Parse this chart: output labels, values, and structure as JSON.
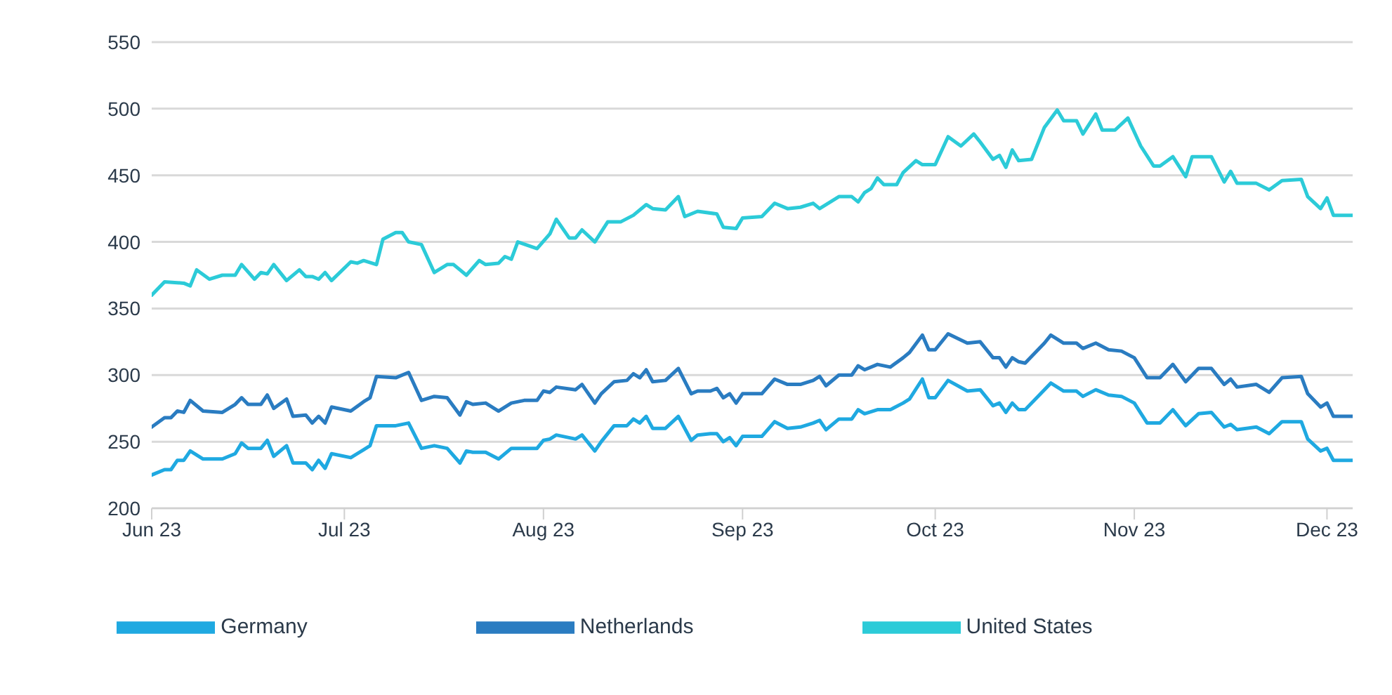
{
  "chart_data": {
    "type": "line",
    "ylim": [
      200,
      550
    ],
    "yticks": [
      200,
      250,
      300,
      350,
      400,
      450,
      500,
      550
    ],
    "xlim": [
      "2023-06-01",
      "2023-12-05"
    ],
    "xticks": [
      {
        "value": "2023-06-01",
        "label": "Jun 23"
      },
      {
        "value": "2023-07-01",
        "label": "Jul 23"
      },
      {
        "value": "2023-08-01",
        "label": "Aug 23"
      },
      {
        "value": "2023-09-01",
        "label": "Sep 23"
      },
      {
        "value": "2023-10-01",
        "label": "Oct 23"
      },
      {
        "value": "2023-11-01",
        "label": "Nov 23"
      },
      {
        "value": "2023-12-01",
        "label": "Dec 23"
      }
    ],
    "grid": "y",
    "legend": "bottom",
    "marker": "none",
    "line_style": "solid",
    "series": [
      {
        "name": "Germany",
        "color": "#1fa9e1",
        "x": [
          "2023-06-01",
          "2023-06-03",
          "2023-06-04",
          "2023-06-05",
          "2023-06-06",
          "2023-06-07",
          "2023-06-09",
          "2023-06-12",
          "2023-06-14",
          "2023-06-15",
          "2023-06-16",
          "2023-06-18",
          "2023-06-19",
          "2023-06-20",
          "2023-06-22",
          "2023-06-23",
          "2023-06-25",
          "2023-06-26",
          "2023-06-27",
          "2023-06-28",
          "2023-06-29",
          "2023-07-02",
          "2023-07-04",
          "2023-07-05",
          "2023-07-06",
          "2023-07-09",
          "2023-07-11",
          "2023-07-13",
          "2023-07-15",
          "2023-07-17",
          "2023-07-19",
          "2023-07-20",
          "2023-07-21",
          "2023-07-23",
          "2023-07-25",
          "2023-07-27",
          "2023-07-29",
          "2023-07-31",
          "2023-08-01",
          "2023-08-02",
          "2023-08-03",
          "2023-08-06",
          "2023-08-07",
          "2023-08-09",
          "2023-08-10",
          "2023-08-12",
          "2023-08-14",
          "2023-08-15",
          "2023-08-16",
          "2023-08-17",
          "2023-08-18",
          "2023-08-20",
          "2023-08-22",
          "2023-08-24",
          "2023-08-25",
          "2023-08-27",
          "2023-08-28",
          "2023-08-29",
          "2023-08-30",
          "2023-08-31",
          "2023-09-01",
          "2023-09-04",
          "2023-09-06",
          "2023-09-08",
          "2023-09-10",
          "2023-09-12",
          "2023-09-13",
          "2023-09-14",
          "2023-09-16",
          "2023-09-18",
          "2023-09-19",
          "2023-09-20",
          "2023-09-22",
          "2023-09-24",
          "2023-09-26",
          "2023-09-27",
          "2023-09-29",
          "2023-09-30",
          "2023-10-01",
          "2023-10-03",
          "2023-10-06",
          "2023-10-08",
          "2023-10-10",
          "2023-10-11",
          "2023-10-12",
          "2023-10-13",
          "2023-10-14",
          "2023-10-15",
          "2023-10-18",
          "2023-10-19",
          "2023-10-21",
          "2023-10-23",
          "2023-10-24",
          "2023-10-26",
          "2023-10-28",
          "2023-10-30",
          "2023-11-01",
          "2023-11-03",
          "2023-11-05",
          "2023-11-07",
          "2023-11-09",
          "2023-11-11",
          "2023-11-13",
          "2023-11-15",
          "2023-11-16",
          "2023-11-17",
          "2023-11-20",
          "2023-11-22",
          "2023-11-24",
          "2023-11-27",
          "2023-11-28",
          "2023-11-30",
          "2023-12-01",
          "2023-12-02",
          "2023-12-05"
        ],
        "values": [
          225,
          229,
          229,
          236,
          236,
          243,
          237,
          237,
          241,
          249,
          245,
          245,
          251,
          239,
          247,
          234,
          234,
          229,
          236,
          230,
          241,
          238,
          244,
          247,
          262,
          262,
          264,
          245,
          247,
          245,
          234,
          243,
          242,
          242,
          237,
          245,
          245,
          245,
          251,
          252,
          255,
          252,
          255,
          243,
          250,
          262,
          262,
          267,
          264,
          269,
          260,
          260,
          269,
          251,
          255,
          256,
          256,
          250,
          253,
          247,
          254,
          254,
          265,
          260,
          261,
          264,
          266,
          259,
          267,
          267,
          274,
          271,
          274,
          274,
          279,
          282,
          297,
          283,
          283,
          296,
          288,
          289,
          277,
          279,
          272,
          279,
          274,
          274,
          289,
          294,
          288,
          288,
          284,
          289,
          285,
          284,
          279,
          264,
          264,
          274,
          262,
          271,
          272,
          261,
          263,
          259,
          261,
          256,
          265,
          265,
          252,
          243,
          245,
          236,
          236
        ]
      },
      {
        "name": "Netherlands",
        "color": "#2a7cc1",
        "x": [
          "2023-06-01",
          "2023-06-03",
          "2023-06-04",
          "2023-06-05",
          "2023-06-06",
          "2023-06-07",
          "2023-06-09",
          "2023-06-12",
          "2023-06-14",
          "2023-06-15",
          "2023-06-16",
          "2023-06-18",
          "2023-06-19",
          "2023-06-20",
          "2023-06-22",
          "2023-06-23",
          "2023-06-25",
          "2023-06-26",
          "2023-06-27",
          "2023-06-28",
          "2023-06-29",
          "2023-07-02",
          "2023-07-04",
          "2023-07-05",
          "2023-07-06",
          "2023-07-09",
          "2023-07-11",
          "2023-07-13",
          "2023-07-15",
          "2023-07-17",
          "2023-07-19",
          "2023-07-20",
          "2023-07-21",
          "2023-07-23",
          "2023-07-25",
          "2023-07-27",
          "2023-07-29",
          "2023-07-31",
          "2023-08-01",
          "2023-08-02",
          "2023-08-03",
          "2023-08-06",
          "2023-08-07",
          "2023-08-09",
          "2023-08-10",
          "2023-08-12",
          "2023-08-14",
          "2023-08-15",
          "2023-08-16",
          "2023-08-17",
          "2023-08-18",
          "2023-08-20",
          "2023-08-22",
          "2023-08-24",
          "2023-08-25",
          "2023-08-27",
          "2023-08-28",
          "2023-08-29",
          "2023-08-30",
          "2023-08-31",
          "2023-09-01",
          "2023-09-04",
          "2023-09-06",
          "2023-09-08",
          "2023-09-10",
          "2023-09-12",
          "2023-09-13",
          "2023-09-14",
          "2023-09-16",
          "2023-09-18",
          "2023-09-19",
          "2023-09-20",
          "2023-09-22",
          "2023-09-24",
          "2023-09-26",
          "2023-09-27",
          "2023-09-29",
          "2023-09-30",
          "2023-10-01",
          "2023-10-03",
          "2023-10-06",
          "2023-10-08",
          "2023-10-10",
          "2023-10-11",
          "2023-10-12",
          "2023-10-13",
          "2023-10-14",
          "2023-10-15",
          "2023-10-18",
          "2023-10-19",
          "2023-10-21",
          "2023-10-23",
          "2023-10-24",
          "2023-10-26",
          "2023-10-28",
          "2023-10-30",
          "2023-11-01",
          "2023-11-03",
          "2023-11-05",
          "2023-11-07",
          "2023-11-09",
          "2023-11-11",
          "2023-11-13",
          "2023-11-15",
          "2023-11-16",
          "2023-11-17",
          "2023-11-20",
          "2023-11-22",
          "2023-11-24",
          "2023-11-27",
          "2023-11-28",
          "2023-11-30",
          "2023-12-01",
          "2023-12-02",
          "2023-12-05"
        ],
        "values": [
          261,
          268,
          268,
          273,
          272,
          281,
          273,
          272,
          278,
          283,
          278,
          278,
          285,
          275,
          282,
          269,
          270,
          264,
          269,
          264,
          276,
          273,
          280,
          283,
          299,
          298,
          302,
          281,
          284,
          283,
          270,
          280,
          278,
          279,
          273,
          279,
          281,
          281,
          288,
          287,
          291,
          289,
          293,
          279,
          286,
          295,
          296,
          301,
          298,
          304,
          295,
          296,
          305,
          286,
          288,
          288,
          290,
          283,
          286,
          279,
          286,
          286,
          297,
          293,
          293,
          296,
          299,
          292,
          300,
          300,
          307,
          304,
          308,
          306,
          313,
          317,
          330,
          319,
          319,
          331,
          324,
          325,
          313,
          313,
          306,
          313,
          310,
          309,
          324,
          330,
          324,
          324,
          320,
          324,
          319,
          318,
          313,
          298,
          298,
          308,
          295,
          305,
          305,
          293,
          297,
          291,
          293,
          287,
          298,
          299,
          286,
          276,
          279,
          269,
          269
        ]
      },
      {
        "name": "United States",
        "color": "#2ccbd8",
        "x": [
          "2023-06-01",
          "2023-06-03",
          "2023-06-06",
          "2023-06-07",
          "2023-06-08",
          "2023-06-10",
          "2023-06-12",
          "2023-06-14",
          "2023-06-15",
          "2023-06-17",
          "2023-06-18",
          "2023-06-19",
          "2023-06-20",
          "2023-06-22",
          "2023-06-24",
          "2023-06-25",
          "2023-06-26",
          "2023-06-27",
          "2023-06-28",
          "2023-06-29",
          "2023-07-02",
          "2023-07-03",
          "2023-07-04",
          "2023-07-06",
          "2023-07-07",
          "2023-07-09",
          "2023-07-10",
          "2023-07-11",
          "2023-07-13",
          "2023-07-15",
          "2023-07-17",
          "2023-07-18",
          "2023-07-19",
          "2023-07-20",
          "2023-07-22",
          "2023-07-23",
          "2023-07-25",
          "2023-07-26",
          "2023-07-27",
          "2023-07-28",
          "2023-07-31",
          "2023-08-02",
          "2023-08-03",
          "2023-08-05",
          "2023-08-06",
          "2023-08-07",
          "2023-08-09",
          "2023-08-11",
          "2023-08-13",
          "2023-08-15",
          "2023-08-17",
          "2023-08-18",
          "2023-08-20",
          "2023-08-22",
          "2023-08-23",
          "2023-08-25",
          "2023-08-28",
          "2023-08-29",
          "2023-08-31",
          "2023-09-01",
          "2023-09-04",
          "2023-09-06",
          "2023-09-08",
          "2023-09-10",
          "2023-09-12",
          "2023-09-13",
          "2023-09-16",
          "2023-09-18",
          "2023-09-19",
          "2023-09-20",
          "2023-09-21",
          "2023-09-22",
          "2023-09-23",
          "2023-09-25",
          "2023-09-26",
          "2023-09-28",
          "2023-09-29",
          "2023-10-01",
          "2023-10-03",
          "2023-10-05",
          "2023-10-07",
          "2023-10-08",
          "2023-10-10",
          "2023-10-11",
          "2023-10-12",
          "2023-10-13",
          "2023-10-14",
          "2023-10-16",
          "2023-10-18",
          "2023-10-20",
          "2023-10-21",
          "2023-10-23",
          "2023-10-24",
          "2023-10-26",
          "2023-10-27",
          "2023-10-29",
          "2023-10-31",
          "2023-11-02",
          "2023-11-04",
          "2023-11-05",
          "2023-11-07",
          "2023-11-09",
          "2023-11-10",
          "2023-11-13",
          "2023-11-15",
          "2023-11-16",
          "2023-11-17",
          "2023-11-20",
          "2023-11-22",
          "2023-11-24",
          "2023-11-27",
          "2023-11-28",
          "2023-11-30",
          "2023-12-01",
          "2023-12-02",
          "2023-12-05"
        ],
        "values": [
          360,
          370,
          369,
          367,
          379,
          372,
          375,
          375,
          383,
          372,
          377,
          376,
          383,
          371,
          379,
          374,
          374,
          372,
          377,
          371,
          385,
          384,
          386,
          383,
          402,
          407,
          407,
          400,
          398,
          377,
          383,
          383,
          379,
          375,
          386,
          383,
          384,
          389,
          387,
          400,
          395,
          406,
          417,
          403,
          403,
          409,
          400,
          415,
          415,
          420,
          428,
          425,
          424,
          434,
          419,
          423,
          421,
          411,
          410,
          418,
          419,
          429,
          425,
          426,
          429,
          425,
          434,
          434,
          430,
          437,
          440,
          448,
          443,
          443,
          452,
          461,
          458,
          458,
          479,
          472,
          481,
          475,
          462,
          465,
          456,
          469,
          461,
          462,
          486,
          499,
          491,
          491,
          481,
          496,
          484,
          484,
          493,
          472,
          457,
          457,
          464,
          449,
          464,
          464,
          445,
          453,
          444,
          444,
          439,
          446,
          447,
          434,
          425,
          433,
          420,
          420
        ]
      }
    ]
  }
}
